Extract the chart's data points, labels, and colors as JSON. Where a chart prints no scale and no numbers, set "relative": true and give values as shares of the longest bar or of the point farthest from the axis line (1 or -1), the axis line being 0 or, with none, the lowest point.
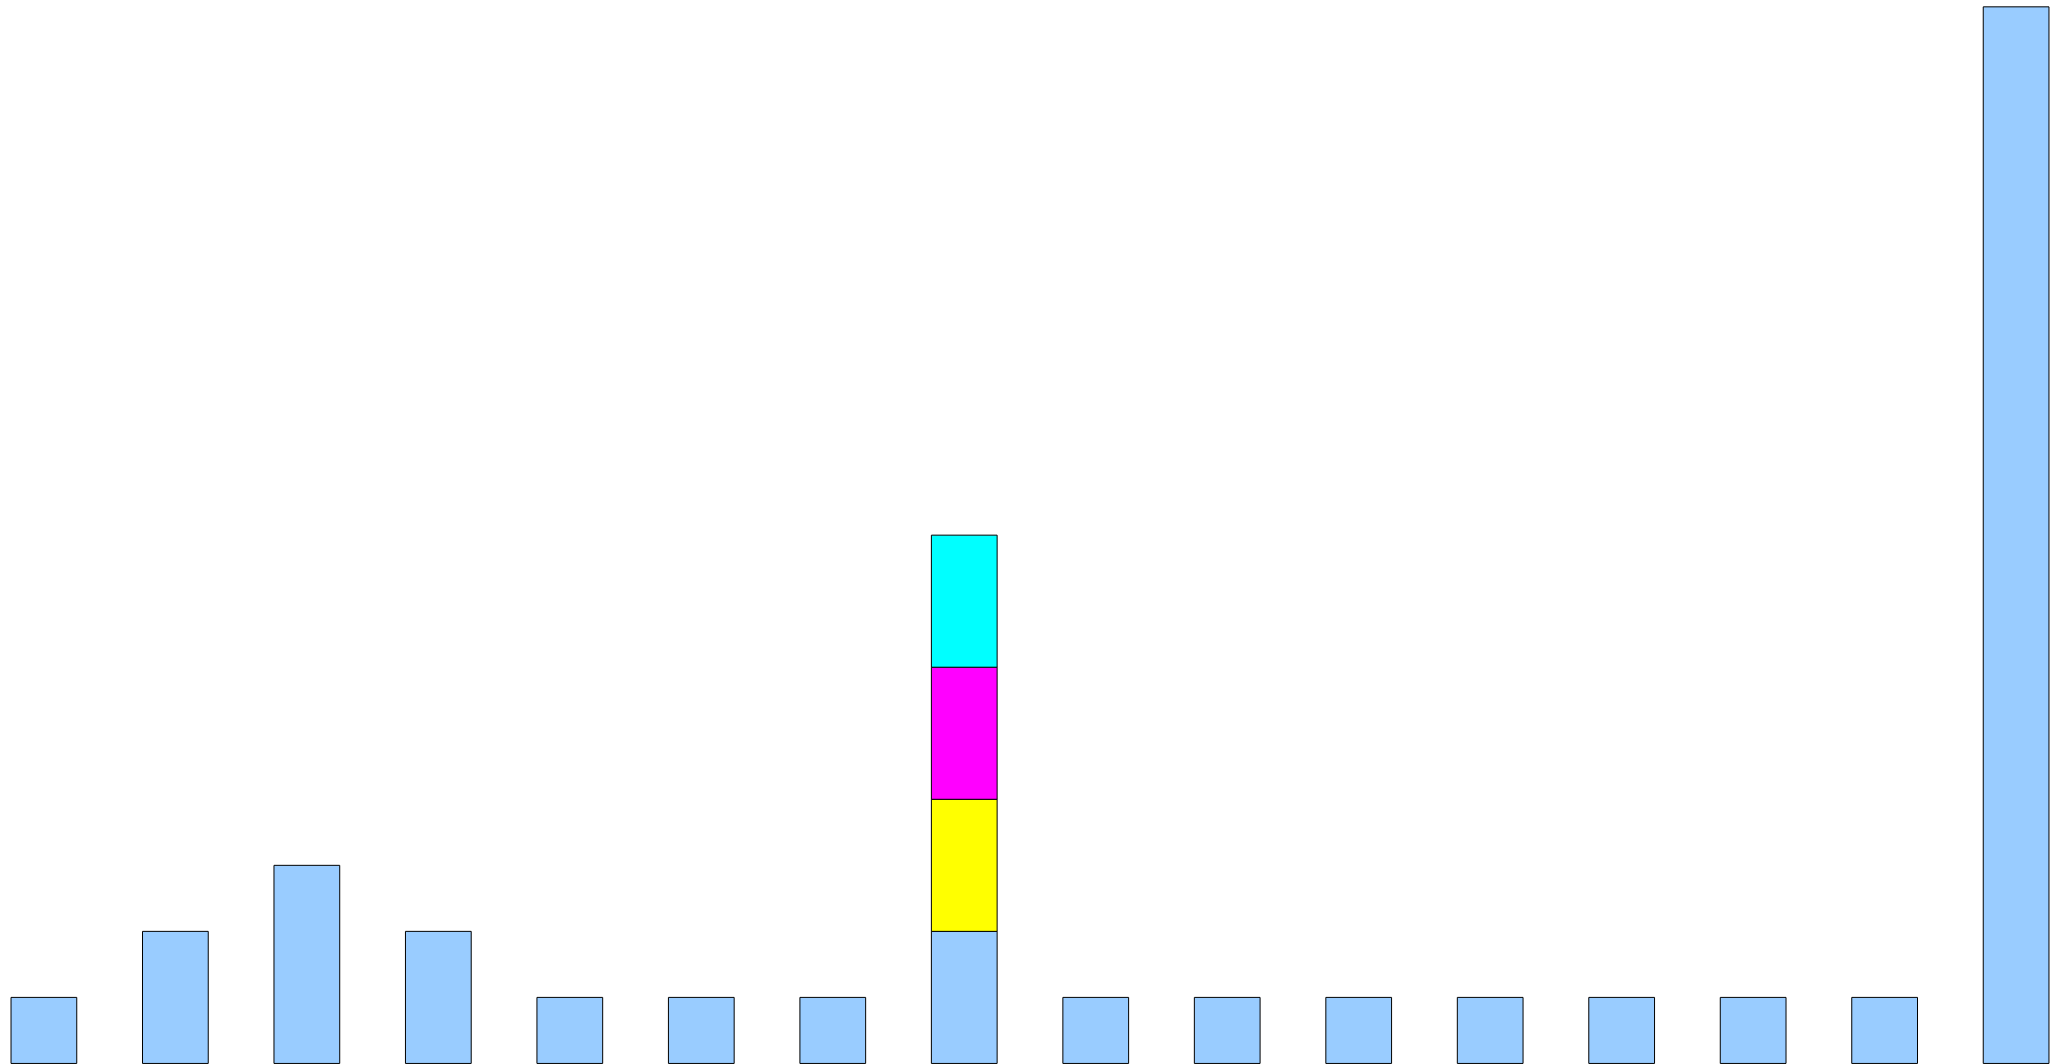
{
  "chart_data": {
    "type": "bar",
    "relative": true,
    "stacked": true,
    "grid": false,
    "categories": [
      null,
      null,
      null,
      null,
      null,
      null,
      null,
      null,
      null,
      null,
      null,
      null,
      null,
      null,
      null,
      null
    ],
    "series": [
      {
        "color": "#99ccff",
        "values": [
          0.0625,
          0.125,
          0.1875,
          0.125,
          0.0625,
          0.0625,
          0.0625,
          0.125,
          0.0625,
          0.0625,
          0.0625,
          0.0625,
          0.0625,
          0.0625,
          0.0625,
          1
        ]
      },
      {
        "color": "#ffff00",
        "values": [
          0,
          0,
          0,
          0,
          0,
          0,
          0,
          0.125,
          0,
          0,
          0,
          0,
          0,
          0,
          0,
          0
        ]
      },
      {
        "color": "#ff00ff",
        "values": [
          0,
          0,
          0,
          0,
          0,
          0,
          0,
          0.125,
          0,
          0,
          0,
          0,
          0,
          0,
          0,
          0
        ]
      },
      {
        "color": "#00ffff",
        "values": [
          0,
          0,
          0,
          0,
          0,
          0,
          0,
          0.125,
          0,
          0,
          0,
          0,
          0,
          0,
          0,
          0
        ]
      }
    ]
  }
}
